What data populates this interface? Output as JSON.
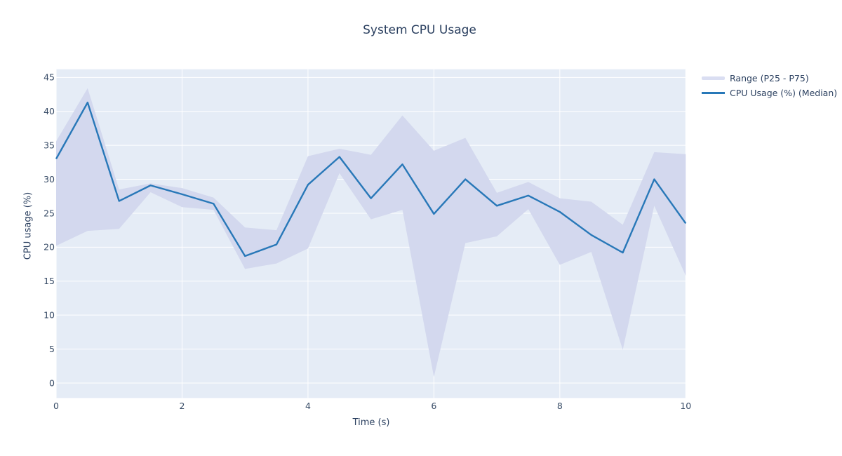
{
  "title": "System CPU Usage",
  "x_axis": {
    "label": "Time (s)",
    "ticks": [
      0,
      2,
      4,
      6,
      8,
      10
    ]
  },
  "y_axis": {
    "label": "CPU usage (%)",
    "ticks": [
      0,
      5,
      10,
      15,
      20,
      25,
      30,
      35,
      40,
      45
    ]
  },
  "legend": {
    "items": [
      {
        "label": "Range (P25 - P75)",
        "type": "band"
      },
      {
        "label": "CPU Usage (%) (Median)",
        "type": "line"
      }
    ]
  },
  "colors": {
    "plot_background": "#e5ecf6",
    "gridline": "#ffffff",
    "median_line": "#2878b8",
    "band_fill": "#d3d8ee",
    "band_legend_swatch": "#dadef2",
    "text": "#2a3f5f"
  },
  "chart_data": {
    "type": "line",
    "title": "System CPU Usage",
    "xlabel": "Time (s)",
    "ylabel": "CPU usage (%)",
    "x": [
      0,
      0.5,
      1,
      1.5,
      2,
      2.5,
      3,
      3.5,
      4,
      4.5,
      5,
      5.5,
      6,
      6.5,
      7,
      7.5,
      8,
      8.5,
      9,
      9.5,
      10
    ],
    "series": [
      {
        "name": "CPU Usage (%) (Median)",
        "values": [
          33.0,
          41.3,
          26.8,
          29.1,
          27.8,
          26.4,
          18.7,
          20.4,
          29.2,
          33.3,
          27.2,
          32.2,
          24.9,
          30.0,
          26.1,
          27.6,
          25.2,
          21.8,
          19.2,
          30.0,
          23.5
        ]
      },
      {
        "name": "P75 (band upper)",
        "values": [
          35.6,
          43.4,
          28.5,
          29.4,
          28.7,
          27.3,
          22.9,
          22.5,
          33.4,
          34.5,
          33.6,
          39.4,
          34.2,
          36.1,
          28.0,
          29.6,
          27.2,
          26.7,
          23.3,
          34.0,
          33.7
        ]
      },
      {
        "name": "P25 (band lower)",
        "values": [
          20.2,
          22.4,
          22.7,
          28.1,
          25.9,
          25.5,
          16.8,
          17.6,
          19.8,
          30.9,
          24.1,
          25.5,
          0.9,
          20.6,
          21.6,
          25.6,
          17.4,
          19.3,
          4.9,
          26.1,
          15.8
        ]
      }
    ],
    "xlim": [
      0,
      10
    ],
    "ylim": [
      -2.2,
      46.2
    ],
    "grid": true,
    "legend_position": "top-right"
  }
}
